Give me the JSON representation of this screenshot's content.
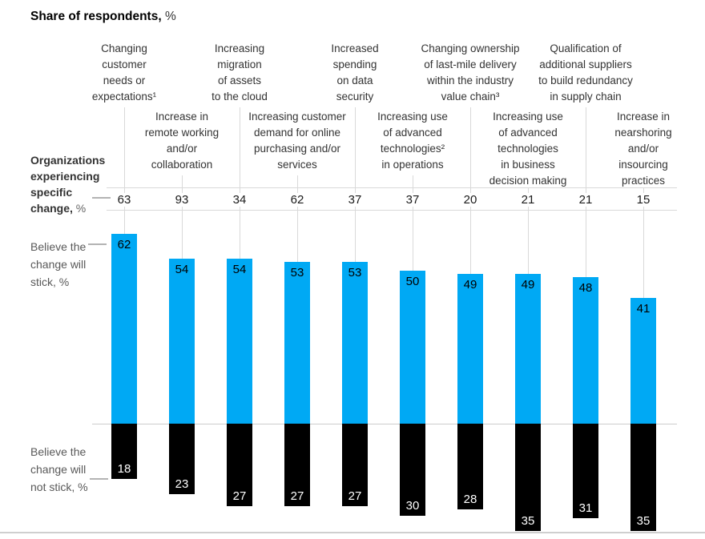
{
  "title": {
    "main": "Share of respondents,",
    "unit": " %"
  },
  "left_labels": {
    "organizations_bold": "Organizations\nexperiencing\nspecific\nchange,",
    "organizations_unit": " %",
    "stick": "Believe the\nchange will\nstick, %",
    "not_stick": "Believe the\nchange will\nnot stick, %"
  },
  "colors": {
    "stick_bar": "#00A9F4",
    "not_stick_bar": "#000000",
    "grid_line": "#d9d9d9",
    "stick_value_text": "#000000",
    "not_stick_value_text": "#ffffff"
  },
  "columns": [
    {
      "label": "Changing\ncustomer\nneeds or\nexpectations¹",
      "row": 1,
      "organizations": 63,
      "stick": 62,
      "not_stick": 18
    },
    {
      "label": "Increase in\nremote working\nand/or\ncollaboration",
      "row": 2,
      "organizations": 93,
      "stick": 54,
      "not_stick": 23
    },
    {
      "label": "Increasing\nmigration\nof assets\nto the cloud",
      "row": 1,
      "organizations": 34,
      "stick": 54,
      "not_stick": 27
    },
    {
      "label": "Increasing customer\ndemand for online\npurchasing and/or\nservices",
      "row": 2,
      "organizations": 62,
      "stick": 53,
      "not_stick": 27
    },
    {
      "label": "Increased\nspending\non data\nsecurity",
      "row": 1,
      "organizations": 37,
      "stick": 53,
      "not_stick": 27
    },
    {
      "label": "Increasing use\nof advanced\ntechnologies²\nin operations",
      "row": 2,
      "organizations": 37,
      "stick": 50,
      "not_stick": 30
    },
    {
      "label": "Changing ownership\nof last-mile delivery\nwithin the industry\nvalue chain³",
      "row": 1,
      "organizations": 20,
      "stick": 49,
      "not_stick": 28
    },
    {
      "label": "Increasing use\nof advanced\ntechnologies\nin business\ndecision making",
      "row": 2,
      "organizations": 21,
      "stick": 49,
      "not_stick": 35
    },
    {
      "label": "Qualification of\nadditional suppliers\nto build redundancy\nin supply chain",
      "row": 1,
      "organizations": 21,
      "stick": 48,
      "not_stick": 31
    },
    {
      "label": "Increase in\nnearshoring\nand/or\ninsourcing\npractices",
      "row": 2,
      "organizations": 15,
      "stick": 41,
      "not_stick": 35
    }
  ],
  "chart_data": {
    "type": "bar",
    "title": "Share of respondents, %",
    "orientation": "vertical-diverging",
    "categories": [
      "Changing customer needs or expectations¹",
      "Increase in remote working and/or collaboration",
      "Increasing migration of assets to the cloud",
      "Increasing customer demand for online purchasing and/or services",
      "Increased spending on data security",
      "Increasing use of advanced technologies² in operations",
      "Changing ownership of last-mile delivery within the industry value chain³",
      "Increasing use of advanced technologies in business decision making",
      "Qualification of additional suppliers to build redundancy in supply chain",
      "Increase in nearshoring and/or insourcing practices"
    ],
    "series": [
      {
        "name": "Organizations experiencing specific change, %",
        "values": [
          63,
          93,
          34,
          62,
          37,
          37,
          20,
          21,
          21,
          15
        ]
      },
      {
        "name": "Believe the change will stick, %",
        "direction": "up",
        "color": "#00A9F4",
        "values": [
          62,
          54,
          54,
          53,
          53,
          50,
          49,
          49,
          48,
          41
        ]
      },
      {
        "name": "Believe the change will not stick, %",
        "direction": "down",
        "color": "#000000",
        "values": [
          18,
          23,
          27,
          27,
          27,
          30,
          28,
          35,
          31,
          35
        ]
      }
    ],
    "legend_position": "left",
    "grid": false,
    "value_labels": "inside-bars"
  }
}
